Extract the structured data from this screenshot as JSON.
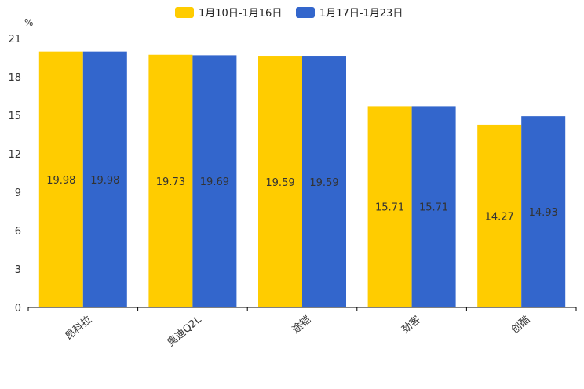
{
  "chart_data": {
    "type": "bar",
    "title": "",
    "ylabel": "%",
    "xlabel": "",
    "ylim": [
      0,
      21
    ],
    "yticks": [
      0,
      3,
      6,
      9,
      12,
      15,
      18,
      21
    ],
    "grid": false,
    "legend_position": "top-center",
    "categories": [
      "昂科拉",
      "奥迪Q2L",
      "途铠",
      "劲客",
      "创酷"
    ],
    "series": [
      {
        "name": "1月10日-1月16日",
        "color": "#FFCC00",
        "values": [
          19.98,
          19.73,
          19.59,
          15.71,
          14.27
        ]
      },
      {
        "name": "1月17日-1月23日",
        "color": "#3366CC",
        "values": [
          19.98,
          19.69,
          19.59,
          15.71,
          14.93
        ]
      }
    ]
  }
}
